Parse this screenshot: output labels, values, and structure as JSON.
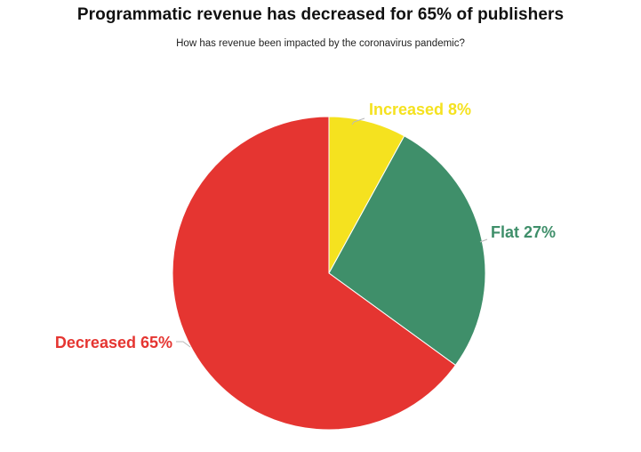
{
  "chart_data": {
    "type": "pie",
    "title": "Programmatic revenue has decreased for 65% of publishers",
    "subtitle": "How has revenue been impacted by the coronavirus pandemic?",
    "slices": [
      {
        "label": "Increased 8%",
        "category": "Increased",
        "value": 8,
        "color": "#f5e21f"
      },
      {
        "label": "Flat 27%",
        "category": "Flat",
        "value": 27,
        "color": "#3f8f6a"
      },
      {
        "label": "Decreased 65%",
        "category": "Decreased",
        "value": 65,
        "color": "#e53531"
      }
    ],
    "start_angle_deg": 0,
    "direction": "clockwise"
  }
}
